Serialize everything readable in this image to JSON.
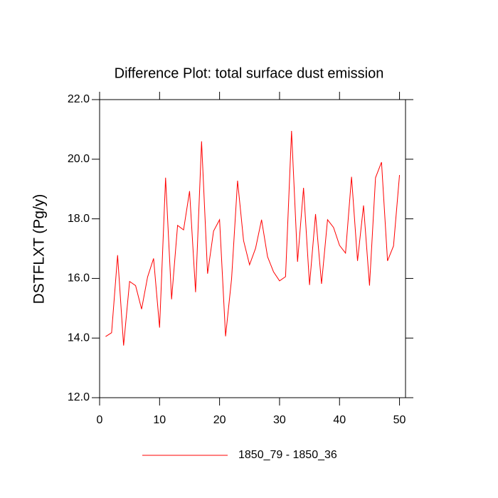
{
  "chart_data": {
    "type": "line",
    "title": "Difference Plot: total surface dust emission",
    "y_label": "DSTFLXT  (Pg/y)",
    "x": [
      1,
      2,
      3,
      4,
      5,
      6,
      7,
      8,
      9,
      10,
      11,
      12,
      13,
      14,
      15,
      16,
      17,
      18,
      19,
      20,
      21,
      22,
      23,
      24,
      25,
      26,
      27,
      28,
      29,
      30,
      31,
      32,
      33,
      34,
      35,
      36,
      37,
      38,
      39,
      40,
      41,
      42,
      43,
      44,
      45,
      46,
      47,
      48,
      49,
      50
    ],
    "series": [
      {
        "name": "1850_79 - 1850_36",
        "color": "#ff0000",
        "values": [
          14.05,
          14.18,
          16.78,
          13.75,
          15.9,
          15.76,
          14.97,
          16.05,
          16.67,
          14.35,
          19.38,
          15.3,
          17.78,
          17.63,
          18.93,
          15.54,
          20.6,
          16.16,
          17.59,
          17.97,
          14.06,
          15.98,
          19.28,
          17.27,
          16.46,
          17.01,
          17.97,
          16.73,
          16.22,
          15.92,
          16.06,
          20.95,
          16.56,
          19.04,
          15.78,
          18.16,
          15.82,
          17.97,
          17.71,
          17.11,
          16.85,
          19.41,
          16.59,
          18.45,
          15.76,
          19.38,
          19.9,
          16.59,
          17.09,
          19.47
        ]
      }
    ],
    "xlim": [
      0,
      51
    ],
    "xticks": [
      0,
      10,
      20,
      30,
      40,
      50
    ],
    "ylim": [
      12,
      22
    ],
    "yticks": [
      {
        "value": 12,
        "label": "12.0"
      },
      {
        "value": 14,
        "label": "14.0"
      },
      {
        "value": 16,
        "label": "16.0"
      },
      {
        "value": 18,
        "label": "18.0"
      },
      {
        "value": 20,
        "label": "20.0"
      },
      {
        "value": 22,
        "label": "22.0"
      }
    ],
    "legend": "bottom"
  }
}
